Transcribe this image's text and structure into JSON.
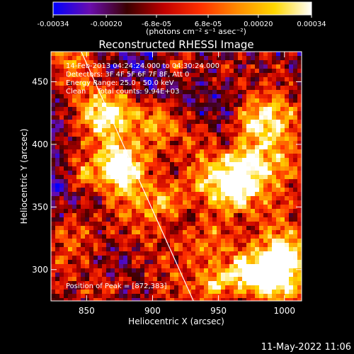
{
  "chart_data": {
    "type": "heatmap",
    "title": "Reconstructed RHESSI Image",
    "xlabel": "Heliocentric X (arcsec)",
    "ylabel": "Heliocentric Y (arcsec)",
    "xlim": [
      823,
      1013
    ],
    "ylim": [
      275,
      474
    ],
    "x_ticks": [
      850,
      900,
      950,
      1000
    ],
    "y_ticks": [
      300,
      350,
      400,
      450
    ],
    "colorbar": {
      "range": [
        -0.00034,
        0.00034
      ],
      "tick_values": [
        -0.00034,
        -0.0002,
        -6.8e-05,
        6.8e-05,
        0.0002,
        0.00034
      ],
      "tick_labels": [
        "-0.00034",
        "-0.00020",
        "-6.8e-05",
        "6.8e-05",
        "0.00020",
        "0.00034"
      ],
      "unit_label": "(photons cm⁻² s⁻¹ asec⁻²)",
      "colormap": [
        "#0000ff",
        "#6a0dad",
        "#3a0000",
        "#c00000",
        "#ff3000",
        "#ff8c00",
        "#ffd700",
        "#ffffff"
      ]
    },
    "annotations": [
      "14-Feb-2013 04:24:24.000 to 04:30:24.000",
      "Detectors: 3F 4F 5F 6F 7F 8F, Att 0",
      "Energy Range: 25.0 - 50.0 keV",
      "Clean     Total counts: 9.94E+03"
    ],
    "peak_label": "Position of Peak = [872,383]",
    "peak": [
      872,
      383
    ],
    "limb_line": [
      [
        846,
        474
      ],
      [
        931,
        275
      ]
    ],
    "timestamp": "11-May-2022 11:06"
  }
}
